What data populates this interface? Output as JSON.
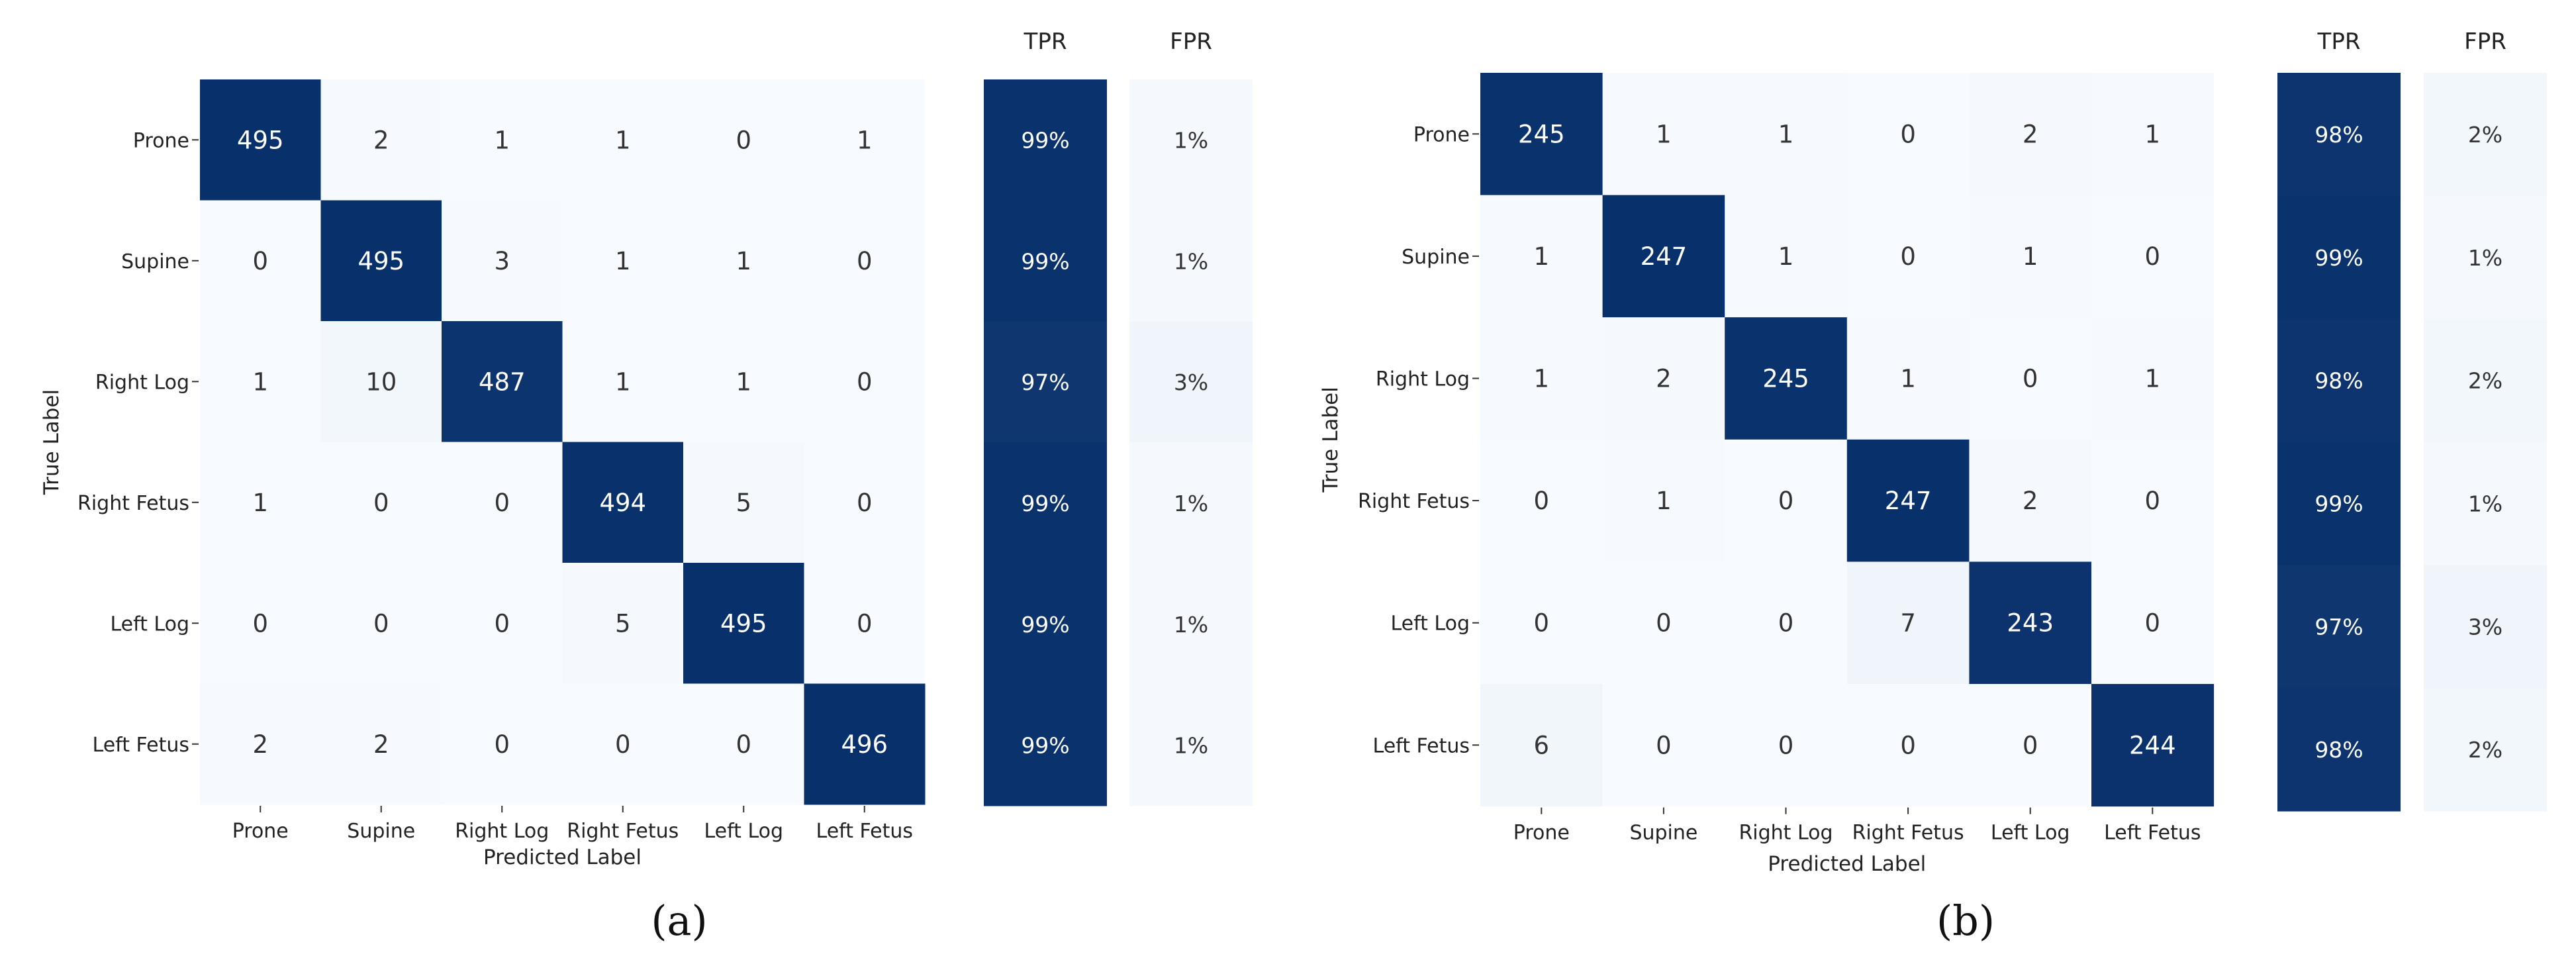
{
  "chart_data": [
    {
      "type": "heatmap",
      "panel_label": "(a)",
      "row_labels": [
        "Prone",
        "Supine",
        "Right Log",
        "Right Fetus",
        "Left Log",
        "Left Fetus"
      ],
      "col_labels": [
        "Prone",
        "Supine",
        "Right Log",
        "Right Fetus",
        "Left Log",
        "Left Fetus"
      ],
      "xlabel": "Predicted Label",
      "ylabel": "True Label",
      "matrix": [
        [
          495,
          2,
          1,
          1,
          0,
          1
        ],
        [
          0,
          495,
          3,
          1,
          1,
          0
        ],
        [
          1,
          10,
          487,
          1,
          1,
          0
        ],
        [
          1,
          0,
          0,
          494,
          5,
          0
        ],
        [
          0,
          0,
          0,
          5,
          495,
          0
        ],
        [
          2,
          2,
          0,
          0,
          0,
          496
        ]
      ],
      "tpr_title": "TPR",
      "fpr_title": "FPR",
      "tpr": [
        "99%",
        "99%",
        "97%",
        "99%",
        "99%",
        "99%"
      ],
      "fpr": [
        "1%",
        "1%",
        "3%",
        "1%",
        "1%",
        "1%"
      ],
      "colormap": [
        "#f7fbff",
        "#08306b"
      ]
    },
    {
      "type": "heatmap",
      "panel_label": "(b)",
      "row_labels": [
        "Prone",
        "Supine",
        "Right Log",
        "Right Fetus",
        "Left Log",
        "Left Fetus"
      ],
      "col_labels": [
        "Prone",
        "Supine",
        "Right Log",
        "Right Fetus",
        "Left Log",
        "Left Fetus"
      ],
      "xlabel": "Predicted Label",
      "ylabel": "True Label",
      "matrix": [
        [
          245,
          1,
          1,
          0,
          2,
          1
        ],
        [
          1,
          247,
          1,
          0,
          1,
          0
        ],
        [
          1,
          2,
          245,
          1,
          0,
          1
        ],
        [
          0,
          1,
          0,
          247,
          2,
          0
        ],
        [
          0,
          0,
          0,
          7,
          243,
          0
        ],
        [
          6,
          0,
          0,
          0,
          0,
          244
        ]
      ],
      "tpr_title": "TPR",
      "fpr_title": "FPR",
      "tpr": [
        "98%",
        "99%",
        "98%",
        "99%",
        "97%",
        "98%"
      ],
      "fpr": [
        "2%",
        "1%",
        "2%",
        "1%",
        "3%",
        "2%"
      ],
      "colormap": [
        "#f7fbff",
        "#08306b"
      ]
    }
  ]
}
